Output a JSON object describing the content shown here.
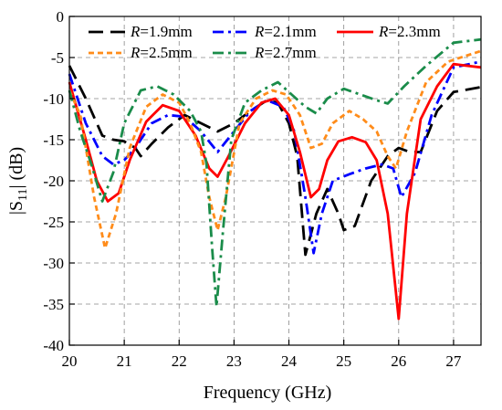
{
  "chart_data": {
    "type": "line",
    "xlabel": "Frequency (GHz)",
    "ylabel": {
      "prefix": "|S",
      "sub": "11",
      "suffix": "| (dB)"
    },
    "xlim": [
      20,
      27.5
    ],
    "ylim": [
      -40,
      0
    ],
    "xticks": [
      20,
      21,
      22,
      23,
      24,
      25,
      26,
      27
    ],
    "yticks": [
      0,
      -5,
      -10,
      -15,
      -20,
      -25,
      -30,
      -35,
      -40
    ],
    "grid": true,
    "legend_position": "top",
    "series": [
      {
        "name": "R=1.9mm",
        "legend": {
          "var": "R",
          "rest": "=1.9mm"
        },
        "color": "#000000",
        "dash": "16,8",
        "points": [
          [
            20,
            -6
          ],
          [
            20.3,
            -10
          ],
          [
            20.6,
            -14.5
          ],
          [
            20.8,
            -15
          ],
          [
            21,
            -15.2
          ],
          [
            21.2,
            -16
          ],
          [
            21.3,
            -17
          ],
          [
            21.5,
            -15.5
          ],
          [
            21.8,
            -13.5
          ],
          [
            22.1,
            -12
          ],
          [
            22.4,
            -13
          ],
          [
            22.7,
            -14
          ],
          [
            23,
            -13
          ],
          [
            23.3,
            -11.5
          ],
          [
            23.6,
            -10.2
          ],
          [
            23.8,
            -10.5
          ],
          [
            24,
            -13
          ],
          [
            24.15,
            -17
          ],
          [
            24.3,
            -29
          ],
          [
            24.5,
            -24
          ],
          [
            24.7,
            -21
          ],
          [
            24.9,
            -24
          ],
          [
            25,
            -26
          ],
          [
            25.2,
            -25.5
          ],
          [
            25.5,
            -20
          ],
          [
            25.8,
            -17
          ],
          [
            26,
            -16
          ],
          [
            26.2,
            -16.5
          ],
          [
            26.4,
            -16.5
          ],
          [
            26.7,
            -11.5
          ],
          [
            27,
            -9.2
          ],
          [
            27.5,
            -8.6
          ]
        ]
      },
      {
        "name": "R=2.1mm",
        "legend": {
          "var": "R",
          "rest": "=2.1mm"
        },
        "color": "#0000ff",
        "dash": "12,5,3,5",
        "points": [
          [
            20,
            -7
          ],
          [
            20.3,
            -13
          ],
          [
            20.6,
            -17
          ],
          [
            20.8,
            -18
          ],
          [
            21,
            -17.5
          ],
          [
            21.2,
            -16
          ],
          [
            21.5,
            -13
          ],
          [
            21.8,
            -12
          ],
          [
            22.1,
            -12.2
          ],
          [
            22.4,
            -14
          ],
          [
            22.7,
            -16.5
          ],
          [
            23,
            -14
          ],
          [
            23.3,
            -11.5
          ],
          [
            23.6,
            -10.2
          ],
          [
            23.9,
            -11
          ],
          [
            24.1,
            -14
          ],
          [
            24.3,
            -22
          ],
          [
            24.45,
            -28.8
          ],
          [
            24.6,
            -24
          ],
          [
            24.8,
            -20
          ],
          [
            25.1,
            -19.2
          ],
          [
            25.4,
            -18.5
          ],
          [
            25.7,
            -18
          ],
          [
            25.9,
            -18.5
          ],
          [
            26.05,
            -22
          ],
          [
            26.3,
            -19
          ],
          [
            26.6,
            -12
          ],
          [
            27,
            -6.2
          ],
          [
            27.5,
            -5.5
          ]
        ]
      },
      {
        "name": "R=2.3mm",
        "legend": {
          "var": "R",
          "rest": "=2.3mm"
        },
        "color": "#ff0000",
        "dash": "",
        "points": [
          [
            20,
            -8
          ],
          [
            20.3,
            -15
          ],
          [
            20.5,
            -20
          ],
          [
            20.7,
            -22.5
          ],
          [
            20.9,
            -21.5
          ],
          [
            21.1,
            -17.5
          ],
          [
            21.4,
            -12.8
          ],
          [
            21.7,
            -10.8
          ],
          [
            22,
            -11.5
          ],
          [
            22.3,
            -14.5
          ],
          [
            22.55,
            -18.5
          ],
          [
            22.7,
            -19.5
          ],
          [
            22.9,
            -17
          ],
          [
            23.2,
            -13
          ],
          [
            23.5,
            -10.5
          ],
          [
            23.75,
            -10
          ],
          [
            24,
            -12
          ],
          [
            24.2,
            -16.5
          ],
          [
            24.4,
            -22
          ],
          [
            24.55,
            -21
          ],
          [
            24.7,
            -17.5
          ],
          [
            24.9,
            -15.2
          ],
          [
            25.15,
            -14.7
          ],
          [
            25.4,
            -15.3
          ],
          [
            25.6,
            -17.5
          ],
          [
            25.8,
            -24
          ],
          [
            26,
            -36.8
          ],
          [
            26.15,
            -24
          ],
          [
            26.4,
            -12.5
          ],
          [
            26.7,
            -8.5
          ],
          [
            27,
            -5.8
          ],
          [
            27.5,
            -6.2
          ]
        ]
      },
      {
        "name": "R=2.5mm",
        "legend": {
          "var": "R",
          "rest": "=2.5mm"
        },
        "color": "#ff8c1a",
        "dash": "6,4",
        "points": [
          [
            20,
            -9
          ],
          [
            20.2,
            -12
          ],
          [
            20.45,
            -22
          ],
          [
            20.65,
            -28.2
          ],
          [
            20.85,
            -24
          ],
          [
            21.1,
            -16
          ],
          [
            21.4,
            -11
          ],
          [
            21.7,
            -9.5
          ],
          [
            22,
            -10.5
          ],
          [
            22.2,
            -13
          ],
          [
            22.4,
            -16.5
          ],
          [
            22.55,
            -22
          ],
          [
            22.7,
            -26
          ],
          [
            22.85,
            -22
          ],
          [
            23.1,
            -13
          ],
          [
            23.4,
            -10
          ],
          [
            23.7,
            -9
          ],
          [
            23.95,
            -9.5
          ],
          [
            24.2,
            -12
          ],
          [
            24.4,
            -16
          ],
          [
            24.6,
            -15.5
          ],
          [
            24.8,
            -13
          ],
          [
            25.1,
            -11.5
          ],
          [
            25.35,
            -12.5
          ],
          [
            25.6,
            -14
          ],
          [
            25.8,
            -17
          ],
          [
            25.95,
            -18.5
          ],
          [
            26.15,
            -14
          ],
          [
            26.5,
            -8
          ],
          [
            26.9,
            -5.5
          ],
          [
            27.5,
            -4.2
          ]
        ]
      },
      {
        "name": "R=2.7mm",
        "legend": {
          "var": "R",
          "rest": "=2.7mm"
        },
        "color": "#1a8c4a",
        "dash": "12,5,3,5",
        "points": [
          [
            20,
            -9
          ],
          [
            20.2,
            -14
          ],
          [
            20.4,
            -18
          ],
          [
            20.6,
            -22.5
          ],
          [
            20.8,
            -19
          ],
          [
            21,
            -13
          ],
          [
            21.3,
            -9
          ],
          [
            21.6,
            -8.5
          ],
          [
            21.9,
            -9.5
          ],
          [
            22.2,
            -11.5
          ],
          [
            22.4,
            -14
          ],
          [
            22.5,
            -18
          ],
          [
            22.6,
            -28
          ],
          [
            22.68,
            -35.3
          ],
          [
            22.8,
            -26
          ],
          [
            22.95,
            -15
          ],
          [
            23.2,
            -10.5
          ],
          [
            23.5,
            -9
          ],
          [
            23.8,
            -8
          ],
          [
            24.05,
            -9.5
          ],
          [
            24.3,
            -11
          ],
          [
            24.5,
            -11.8
          ],
          [
            24.7,
            -10
          ],
          [
            25,
            -8.8
          ],
          [
            25.3,
            -9.5
          ],
          [
            25.6,
            -10.2
          ],
          [
            25.8,
            -10.6
          ],
          [
            26.1,
            -8.5
          ],
          [
            26.5,
            -6
          ],
          [
            27,
            -3.2
          ],
          [
            27.5,
            -2.8
          ]
        ]
      }
    ]
  }
}
